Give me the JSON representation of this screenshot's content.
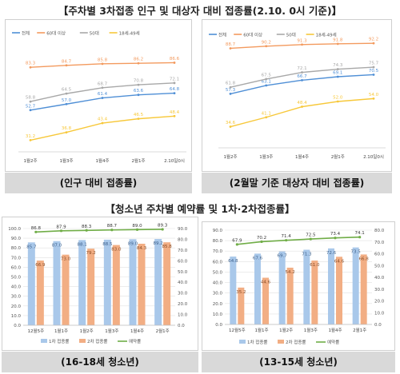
{
  "titles": {
    "top": "【주차별 3차접종 인구 및 대상자 대비 접종률(2.10. 0시 기준)】",
    "bottom": "【청소년 주차별 예약률 및 1차·2차접종률】"
  },
  "captions": {
    "c1": "(인구 대비 접종률)",
    "c2": "(2월말 기준 대상자 대비 접종률)",
    "c3": "(16-18세 청소년)",
    "c4": "(13-15세 청소년)"
  },
  "colors": {
    "total": "#4f8fd6",
    "over60": "#f39a5e",
    "fifties": "#a8a8a8",
    "forties": "#f7c83a",
    "bar1": "#a9c8ea",
    "bar2": "#f2ae84",
    "rate": "#70ad47"
  },
  "chart_data": [
    {
      "type": "line",
      "categories": [
        "1월2주",
        "1월3주",
        "1월4주",
        "2월1주",
        "2.10일0시"
      ],
      "ylim": [
        20,
        100
      ],
      "series": [
        {
          "name": "전체",
          "values": [
            52.7,
            57.0,
            61.4,
            63.6,
            64.8
          ],
          "labels": [
            "52.7",
            "57.0",
            "61.4",
            "63.6",
            "64.8"
          ]
        },
        {
          "name": "60대 이상",
          "values": [
            83.3,
            84.7,
            85.8,
            86.2,
            86.6
          ],
          "labels": [
            "83.3",
            "84.7",
            "85.8",
            "86.2",
            "86.6"
          ]
        },
        {
          "name": "50대",
          "values": [
            58.8,
            64.5,
            68.7,
            70.8,
            72.1
          ],
          "labels": [
            "58.8",
            "64.5",
            "68.7",
            "70.8",
            "72.1"
          ]
        },
        {
          "name": "18세-49세",
          "values": [
            31.2,
            36.8,
            43.4,
            46.5,
            48.4
          ],
          "labels": [
            "31.2",
            "36.8",
            "43.4",
            "46.5",
            "48.4"
          ]
        }
      ]
    },
    {
      "type": "line",
      "categories": [
        "1월2주",
        "1월3주",
        "1월4주",
        "2월1주",
        "2.10일0시"
      ],
      "ylim": [
        20,
        100
      ],
      "series": [
        {
          "name": "전체",
          "values": [
            57.3,
            63.1,
            66.7,
            69.1,
            70.5
          ],
          "labels": [
            "57.3",
            "63.1",
            "66.7",
            "69.1",
            "70.5"
          ]
        },
        {
          "name": "60대 이상",
          "values": [
            88.7,
            90.2,
            91.3,
            91.8,
            92.2
          ],
          "labels": [
            "88.7",
            "90.2",
            "91.3",
            "91.8",
            "92.2"
          ]
        },
        {
          "name": "50대",
          "values": [
            61.8,
            67.5,
            72.1,
            74.3,
            75.7
          ],
          "labels": [
            "61.8",
            "67.5",
            "72.1",
            "74.3",
            "75.7"
          ]
        },
        {
          "name": "18세-49세",
          "values": [
            34.6,
            41.1,
            48.4,
            52.0,
            54.0
          ],
          "labels": [
            "34.6",
            "41.1",
            "48.4",
            "52.0",
            "54.0"
          ]
        }
      ]
    },
    {
      "type": "bar",
      "categories": [
        "12월5주",
        "1월1주",
        "1월2주",
        "1월3주",
        "1월4주",
        "2월1주"
      ],
      "ylim": [
        0,
        100
      ],
      "yticks": [
        "0.0",
        "10.0",
        "20.0",
        "30.0",
        "40.0",
        "50.0",
        "60.0",
        "70.0",
        "80.0",
        "90.0",
        "100.0"
      ],
      "y2lim": [
        0,
        90
      ],
      "y2ticks": [
        "0.0",
        "10.0",
        "20.0",
        "30.0",
        "40.0",
        "50.0",
        "60.0",
        "70.0",
        "80.0",
        "90.0"
      ],
      "series": [
        {
          "name": "1차 접종률",
          "values": [
            85.7,
            87.0,
            88.1,
            88.5,
            89.0,
            89.2
          ],
          "labels": [
            "85.7",
            "87.0",
            "88.1",
            "88.5",
            "89.0",
            "89.2"
          ]
        },
        {
          "name": "2차 접종률",
          "values": [
            66.9,
            73.0,
            79.2,
            83.0,
            84.3,
            85.8
          ],
          "labels": [
            "66.9",
            "73.0",
            "79.2",
            "83.0",
            "84.3",
            "85.8"
          ]
        },
        {
          "name": "예약률",
          "axis": "right",
          "values": [
            86.8,
            87.9,
            88.3,
            88.7,
            89.0,
            89.3
          ],
          "labels": [
            "86.8",
            "87.9",
            "88.3",
            "88.7",
            "89.0",
            "89.3"
          ]
        }
      ]
    },
    {
      "type": "bar",
      "categories": [
        "12월5주",
        "1월1주",
        "1월2주",
        "1월3주",
        "1월4주",
        "2월1주"
      ],
      "ylim": [
        0,
        90
      ],
      "yticks": [
        "0.0",
        "10.0",
        "20.0",
        "30.0",
        "40.0",
        "50.0",
        "60.0",
        "70.0",
        "80.0",
        "90.0"
      ],
      "y2lim": [
        0,
        80
      ],
      "y2ticks": [
        "0.0",
        "10.0",
        "20.0",
        "30.0",
        "40.0",
        "50.0",
        "60.0",
        "70.0",
        "80.0"
      ],
      "series": [
        {
          "name": "1차 접종률",
          "values": [
            64.8,
            67.6,
            69.7,
            71.3,
            72.6,
            73.5
          ],
          "labels": [
            "64.8",
            "67.6",
            "69.7",
            "71.3",
            "72.6",
            "73.5"
          ]
        },
        {
          "name": "2차 접종률",
          "values": [
            35.2,
            44.6,
            54.2,
            61.0,
            64.6,
            66.8
          ],
          "labels": [
            "35.2",
            "44.6",
            "54.2",
            "61.0",
            "64.6",
            "66.8"
          ]
        },
        {
          "name": "예약률",
          "axis": "right",
          "values": [
            67.9,
            70.2,
            71.4,
            72.5,
            73.4,
            74.1
          ],
          "labels": [
            "67.9",
            "70.2",
            "71.4",
            "72.5",
            "73.4",
            "74.1"
          ]
        }
      ]
    }
  ]
}
